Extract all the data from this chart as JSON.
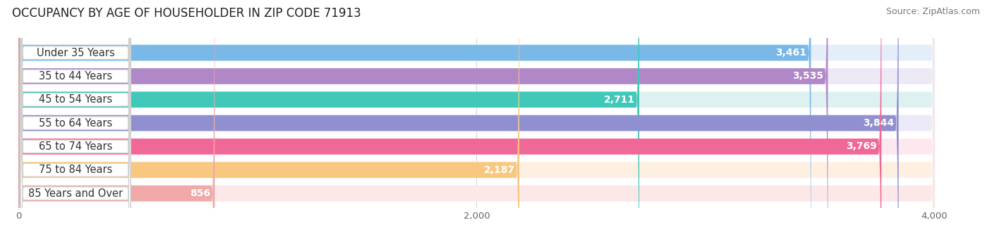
{
  "title": "OCCUPANCY BY AGE OF HOUSEHOLDER IN ZIP CODE 71913",
  "source": "Source: ZipAtlas.com",
  "categories": [
    "Under 35 Years",
    "35 to 44 Years",
    "45 to 54 Years",
    "55 to 64 Years",
    "65 to 74 Years",
    "75 to 84 Years",
    "85 Years and Over"
  ],
  "values": [
    3461,
    3535,
    2711,
    3844,
    3769,
    2187,
    856
  ],
  "bar_colors": [
    "#7ab8e8",
    "#b088c8",
    "#40c8b8",
    "#9090d0",
    "#f06898",
    "#f8c880",
    "#f0a8a8"
  ],
  "bar_bg_colors": [
    "#e4eef8",
    "#ece8f4",
    "#ddf2f0",
    "#eceaf8",
    "#fde8f0",
    "#fdf0e0",
    "#fce8e8"
  ],
  "xticks": [
    0,
    2000,
    4000
  ],
  "background_color": "#ffffff",
  "plot_bg_color": "#f0f0f0",
  "bar_height": 0.68,
  "title_fontsize": 12,
  "source_fontsize": 9,
  "label_fontsize": 10.5,
  "value_fontsize": 10
}
